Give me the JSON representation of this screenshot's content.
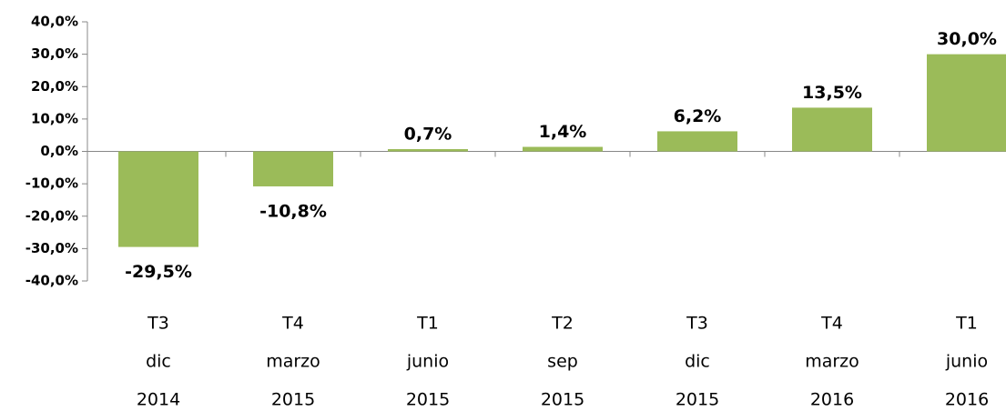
{
  "chart_data": {
    "type": "bar",
    "categories": [
      [
        "T3",
        "dic",
        "2014"
      ],
      [
        "T4",
        "marzo",
        "2015"
      ],
      [
        "T1",
        "junio",
        "2015"
      ],
      [
        "T2",
        "sep",
        "2015"
      ],
      [
        "T3",
        "dic",
        "2015"
      ],
      [
        "T4",
        "marzo",
        "2016"
      ],
      [
        "T1",
        "junio",
        "2016"
      ]
    ],
    "values": [
      -29.5,
      -10.8,
      0.7,
      1.4,
      6.2,
      13.5,
      30.0
    ],
    "value_labels": [
      "-29,5%",
      "-10,8%",
      "0,7%",
      "1,4%",
      "6,2%",
      "13,5%",
      "30,0%"
    ],
    "color": "#9bbb59",
    "ylim": [
      -40,
      40
    ],
    "yticks": [
      {
        "value": -40,
        "label": "-40,0%"
      },
      {
        "value": -30,
        "label": "-30,0%"
      },
      {
        "value": -20,
        "label": "-20,0%"
      },
      {
        "value": -10,
        "label": "-10,0%"
      },
      {
        "value": 0,
        "label": "0,0%"
      },
      {
        "value": 10,
        "label": "10,0%"
      },
      {
        "value": 20,
        "label": "20,0%"
      },
      {
        "value": 30,
        "label": "30,0%"
      },
      {
        "value": 40,
        "label": "40,0%"
      }
    ],
    "grid": false
  }
}
